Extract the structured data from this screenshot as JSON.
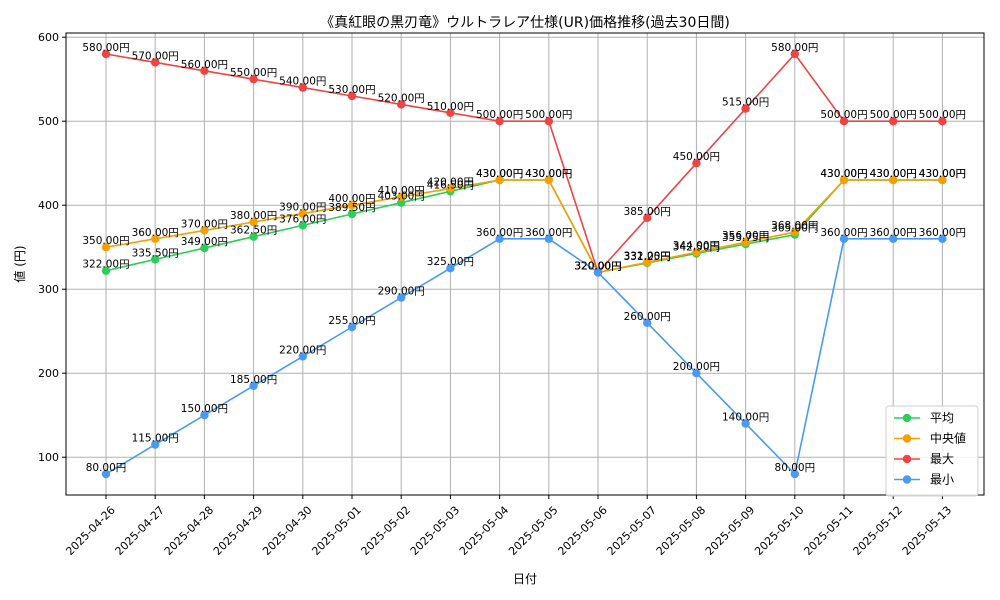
{
  "chart_data": {
    "type": "line",
    "title": "《真紅眼の黒刃竜》ウルトラレア仕様(UR)価格推移(過去30日間)",
    "xlabel": "日付",
    "ylabel": "値 (円)",
    "ylim": [
      55,
      605
    ],
    "yticks": [
      100,
      200,
      300,
      400,
      500,
      600
    ],
    "grid": true,
    "legend_position": "bottom-right",
    "label_suffix": "円",
    "categories": [
      "2025-04-26",
      "2025-04-27",
      "2025-04-28",
      "2025-04-29",
      "2025-04-30",
      "2025-05-01",
      "2025-05-02",
      "2025-05-03",
      "2025-05-04",
      "2025-05-05",
      "2025-05-06",
      "2025-05-07",
      "2025-05-08",
      "2025-05-09",
      "2025-05-10",
      "2025-05-11",
      "2025-05-12",
      "2025-05-13"
    ],
    "series": [
      {
        "name": "平均",
        "color": "#2ecc5a",
        "values": [
          322.0,
          335.5,
          349.0,
          362.5,
          376.0,
          389.5,
          403.0,
          416.5,
          430.0,
          430.0,
          320.0,
          331.25,
          342.5,
          353.75,
          365.0,
          430.0,
          430.0,
          430.0
        ]
      },
      {
        "name": "中央値",
        "color": "#f5a000",
        "values": [
          350.0,
          360.0,
          370.0,
          380.0,
          390.0,
          400.0,
          410.0,
          420.0,
          430.0,
          430.0,
          320.0,
          332.0,
          344.0,
          356.0,
          368.0,
          430.0,
          430.0,
          430.0
        ]
      },
      {
        "name": "最大",
        "color": "#f04444",
        "values": [
          580.0,
          570.0,
          560.0,
          550.0,
          540.0,
          530.0,
          520.0,
          510.0,
          500.0,
          500.0,
          320.0,
          385.0,
          450.0,
          515.0,
          580.0,
          500.0,
          500.0,
          500.0
        ]
      },
      {
        "name": "最小",
        "color": "#4a9af5",
        "values": [
          80.0,
          115.0,
          150.0,
          185.0,
          220.0,
          255.0,
          290.0,
          325.0,
          360.0,
          360.0,
          320.0,
          260.0,
          200.0,
          140.0,
          80.0,
          360.0,
          360.0,
          360.0
        ]
      }
    ]
  }
}
